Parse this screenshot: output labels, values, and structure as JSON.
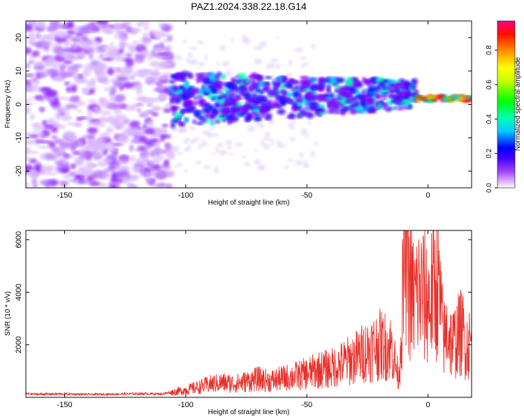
{
  "figure": {
    "title": "PAZ1.2024.338.22.18.G14"
  },
  "chart_data": [
    {
      "type": "heatmap",
      "title": "PAZ1.2024.338.22.18.G14",
      "xlabel": "Height of straight line (km)",
      "ylabel": "Frequency (Hz)",
      "xlim": [
        -166,
        18
      ],
      "ylim": [
        -25,
        25
      ],
      "xticks": [
        -150,
        -100,
        -50,
        0
      ],
      "xtick_labels": [
        "-150",
        "-100",
        "-50",
        "0"
      ],
      "yticks": [
        20,
        10,
        0,
        -10,
        -20
      ],
      "ytick_labels": [
        "20",
        "10",
        "0",
        "-10",
        "-20"
      ],
      "colorbar": {
        "label": "Normalized spectral amplitude",
        "range": [
          0,
          0.97
        ],
        "ticks": [
          0.0,
          0.2,
          0.4,
          0.6,
          0.8
        ],
        "tick_labels": [
          "0.0",
          "0.2",
          "0.4",
          "0.6",
          "0.8"
        ],
        "colormap": [
          "#ffffff",
          "#c080ff",
          "#8000ff",
          "#0000ff",
          "#00ffff",
          "#00ff00",
          "#ffff00",
          "#ff8000",
          "#ff0000",
          "#ff0080"
        ]
      },
      "description_regions": [
        {
          "x_range": [
            -166,
            -106
          ],
          "freq_range": [
            -25,
            25
          ],
          "amplitude": "low (0.05-0.2), noise"
        },
        {
          "x_range": [
            -106,
            -5
          ],
          "freq_range": [
            -8,
            9
          ],
          "amplitude": "0.1-0.55, band narrowing toward 0 km"
        },
        {
          "x_range": [
            -5,
            18
          ],
          "freq_range": [
            0,
            3
          ],
          "amplitude": "0.6-0.97, narrow line near 1-2 Hz"
        }
      ],
      "grid": false
    },
    {
      "type": "line",
      "xlabel": "Height of straight line (km)",
      "ylabel": "SNR (10 * v/v)",
      "xlim": [
        -166,
        18
      ],
      "ylim": [
        0,
        6350
      ],
      "xticks": [
        -150,
        -100,
        -50,
        0
      ],
      "xtick_labels": [
        "-150",
        "-100",
        "-50",
        "0"
      ],
      "yticks": [
        2000,
        4000,
        6000
      ],
      "ytick_labels": [
        "2000",
        "4000",
        "6000"
      ],
      "line_color": "#e8302a",
      "series": [
        {
          "x": [
            -166,
            -160,
            -150,
            -140,
            -130,
            -120,
            -110,
            -105,
            -100,
            -95,
            -90,
            -85,
            -80,
            -75,
            -70,
            -65,
            -60,
            -55,
            -50,
            -45,
            -40,
            -35,
            -30,
            -25,
            -20,
            -15,
            -12,
            -10,
            -9,
            -8,
            -6,
            -4,
            -2,
            0,
            2,
            4,
            5,
            6,
            7,
            8,
            10,
            12,
            14,
            16,
            18
          ],
          "y": [
            130,
            120,
            130,
            110,
            120,
            140,
            130,
            200,
            280,
            380,
            500,
            560,
            520,
            600,
            700,
            620,
            720,
            800,
            900,
            1050,
            1100,
            1300,
            1500,
            1800,
            2000,
            1900,
            700,
            4600,
            6300,
            4400,
            3700,
            4000,
            3900,
            3600,
            4000,
            4300,
            3600,
            2500,
            2200,
            2600,
            2000,
            2300,
            2500,
            2000,
            2100
          ]
        }
      ],
      "grid": false
    }
  ]
}
